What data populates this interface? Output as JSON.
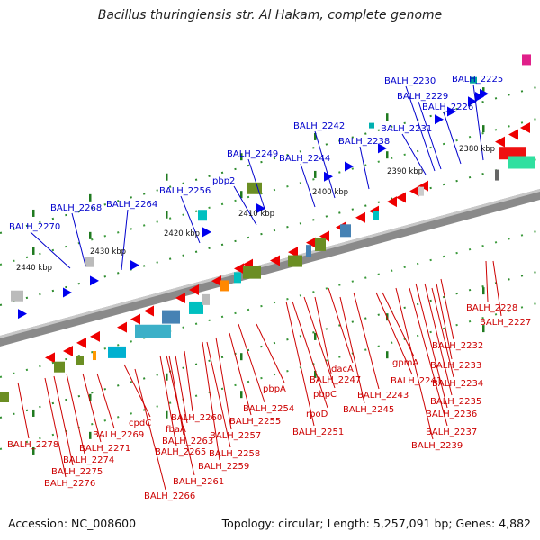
{
  "title": "Bacillus thuringiensis str. Al Hakam, complete genome",
  "accession": "Accession: NC_008600",
  "summary": "Topology: circular; Length: 5,257,091 bp; Genes: 4,882",
  "colors": {
    "upper_label": "#0000cc",
    "lower_label": "#cc0000",
    "backbone": "#8a8a8a",
    "tick": "#2a8a2a"
  },
  "kbp_marks": [
    "2380 kbp",
    "2390 kbp",
    "2400 kbp",
    "2410 kbp",
    "2420 kbp",
    "2430 kbp",
    "2440 kbp"
  ],
  "upper_labels": [
    "BALH_2225",
    "BALH_2230",
    "BALH_2229",
    "BALH_2226",
    "BALH_2231",
    "BALH_2242",
    "BALH_2238",
    "BALH_2249",
    "BALH_2244",
    "pbp2",
    "BALH_2256",
    "BALH_2264",
    "BALH_2268",
    "BALH_2270"
  ],
  "lower_labels": [
    "BALH_2228",
    "BALH_2227",
    "BALH_2232",
    "BALH_2233",
    "BALH_2234",
    "BALH_2235",
    "BALH_2236",
    "BALH_2237",
    "BALH_2239",
    "gpmA",
    "BALH_2241",
    "BALH_2243",
    "BALH_2245",
    "dacA",
    "BALH_2247",
    "pbpC",
    "rpoD",
    "BALH_2251",
    "pbpA",
    "BALH_2254",
    "BALH_2255",
    "BALH_2257",
    "BALH_2258",
    "BALH_2259",
    "BALH_2260",
    "BALH_2261",
    "fbaA",
    "BALH_2263",
    "BALH_2265",
    "cpdC",
    "BALH_2266",
    "BALH_2269",
    "BALH_2271",
    "BALH_2274",
    "BALH_2275",
    "BALH_2276",
    "BALH_2278"
  ]
}
